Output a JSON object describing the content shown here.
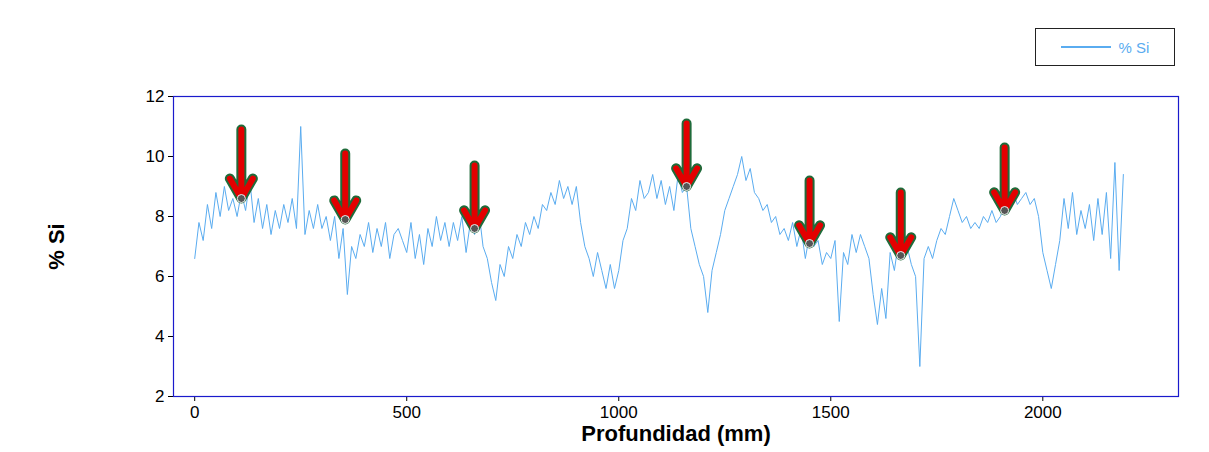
{
  "chart_data": {
    "type": "line",
    "x_label": "Profundidad (mm)",
    "y_label": "% Si",
    "legend": "top-right",
    "grid": false,
    "xlim": [
      -50,
      2320
    ],
    "xticks": [
      0,
      500,
      1000,
      1500,
      2000
    ],
    "ylim": [
      2,
      12
    ],
    "yticks": [
      2,
      4,
      6,
      8,
      10,
      12
    ],
    "x": [
      0,
      10,
      20,
      30,
      40,
      50,
      60,
      70,
      80,
      90,
      100,
      110,
      120,
      130,
      140,
      150,
      160,
      170,
      180,
      190,
      200,
      210,
      220,
      230,
      240,
      250,
      260,
      270,
      280,
      290,
      300,
      310,
      320,
      330,
      340,
      350,
      360,
      370,
      380,
      390,
      400,
      410,
      420,
      430,
      440,
      450,
      460,
      470,
      480,
      490,
      500,
      510,
      520,
      530,
      540,
      550,
      560,
      570,
      580,
      590,
      600,
      610,
      620,
      630,
      640,
      650,
      660,
      670,
      680,
      690,
      700,
      710,
      720,
      730,
      740,
      750,
      760,
      770,
      780,
      790,
      800,
      810,
      820,
      830,
      840,
      850,
      860,
      870,
      880,
      890,
      900,
      910,
      920,
      930,
      940,
      950,
      960,
      970,
      980,
      990,
      1000,
      1010,
      1020,
      1030,
      1040,
      1050,
      1060,
      1070,
      1080,
      1090,
      1100,
      1110,
      1120,
      1130,
      1140,
      1150,
      1160,
      1170,
      1180,
      1190,
      1200,
      1210,
      1220,
      1230,
      1240,
      1250,
      1260,
      1270,
      1280,
      1290,
      1300,
      1310,
      1320,
      1330,
      1340,
      1350,
      1360,
      1370,
      1380,
      1390,
      1400,
      1410,
      1420,
      1430,
      1440,
      1450,
      1460,
      1470,
      1480,
      1490,
      1500,
      1510,
      1520,
      1530,
      1540,
      1550,
      1560,
      1570,
      1580,
      1590,
      1600,
      1610,
      1620,
      1630,
      1640,
      1650,
      1660,
      1670,
      1680,
      1690,
      1700,
      1710,
      1720,
      1730,
      1740,
      1750,
      1760,
      1770,
      1780,
      1790,
      1800,
      1810,
      1820,
      1830,
      1840,
      1850,
      1860,
      1870,
      1880,
      1890,
      1900,
      1910,
      1920,
      1930,
      1940,
      1950,
      1960,
      1970,
      1980,
      1990,
      2000,
      2010,
      2020,
      2030,
      2040,
      2050,
      2060,
      2070,
      2080,
      2090,
      2100,
      2110,
      2120,
      2130,
      2140,
      2150,
      2160,
      2170,
      2180,
      2190
    ],
    "series": [
      {
        "name": "% Si",
        "color": "#5aacf0",
        "values": [
          6.6,
          7.8,
          7.2,
          8.4,
          7.6,
          8.8,
          8.0,
          9.0,
          8.2,
          8.6,
          8.0,
          8.8,
          8.2,
          9.2,
          7.8,
          8.6,
          7.6,
          8.4,
          7.4,
          8.2,
          7.6,
          8.4,
          7.8,
          8.6,
          7.6,
          11.0,
          7.4,
          8.2,
          7.6,
          8.4,
          7.6,
          8.0,
          7.2,
          8.0,
          6.6,
          7.6,
          5.4,
          7.0,
          6.6,
          7.4,
          7.0,
          7.8,
          6.8,
          7.6,
          7.0,
          7.8,
          6.6,
          7.4,
          7.6,
          7.2,
          6.8,
          7.8,
          6.6,
          7.4,
          6.4,
          7.6,
          7.0,
          8.0,
          7.2,
          7.8,
          7.0,
          7.8,
          7.2,
          8.0,
          6.8,
          7.8,
          7.4,
          8.2,
          7.0,
          6.6,
          5.8,
          5.2,
          6.4,
          6.0,
          7.0,
          6.6,
          7.4,
          7.0,
          7.8,
          7.4,
          8.0,
          7.6,
          8.4,
          8.2,
          8.8,
          8.4,
          9.2,
          8.6,
          9.0,
          8.4,
          9.0,
          7.8,
          7.0,
          6.6,
          6.0,
          6.8,
          6.2,
          5.6,
          6.4,
          5.6,
          6.2,
          7.2,
          7.6,
          8.6,
          8.2,
          9.2,
          8.6,
          8.8,
          9.4,
          8.6,
          9.2,
          8.4,
          9.0,
          8.2,
          9.4,
          8.8,
          9.0,
          7.6,
          7.0,
          6.4,
          6.0,
          4.8,
          6.2,
          6.8,
          7.4,
          8.2,
          8.6,
          9.0,
          9.4,
          10.0,
          9.2,
          9.6,
          8.8,
          8.6,
          8.2,
          8.4,
          7.8,
          8.0,
          7.4,
          7.6,
          7.2,
          7.8,
          7.0,
          7.6,
          6.6,
          7.4,
          7.0,
          7.2,
          6.4,
          6.8,
          6.6,
          7.2,
          4.5,
          6.8,
          6.4,
          7.4,
          6.8,
          7.4,
          7.0,
          6.6,
          5.4,
          4.4,
          5.6,
          4.6,
          6.8,
          6.2,
          7.2,
          6.6,
          7.0,
          6.4,
          6.0,
          3.0,
          6.6,
          7.0,
          6.6,
          7.2,
          7.6,
          7.4,
          8.0,
          8.6,
          8.2,
          7.8,
          8.0,
          7.6,
          7.8,
          7.6,
          8.0,
          7.8,
          8.2,
          7.8,
          8.0,
          8.4,
          8.2,
          8.8,
          8.4,
          8.6,
          8.8,
          8.4,
          8.6,
          8.0,
          6.8,
          6.2,
          5.6,
          6.4,
          7.2,
          8.6,
          7.6,
          8.8,
          7.4,
          8.2,
          7.6,
          8.4,
          7.2,
          8.6,
          7.4,
          8.8,
          6.6,
          9.8,
          6.2,
          9.4
        ]
      }
    ],
    "arrows": {
      "color": "#e30000",
      "x": [
        110,
        355,
        660,
        1160,
        1450,
        1665,
        1910
      ],
      "y_start": [
        10.9,
        10.1,
        9.7,
        11.1,
        9.2,
        8.8,
        10.3
      ],
      "y_end": [
        8.6,
        7.9,
        7.6,
        9.0,
        7.1,
        6.7,
        8.2
      ]
    }
  }
}
